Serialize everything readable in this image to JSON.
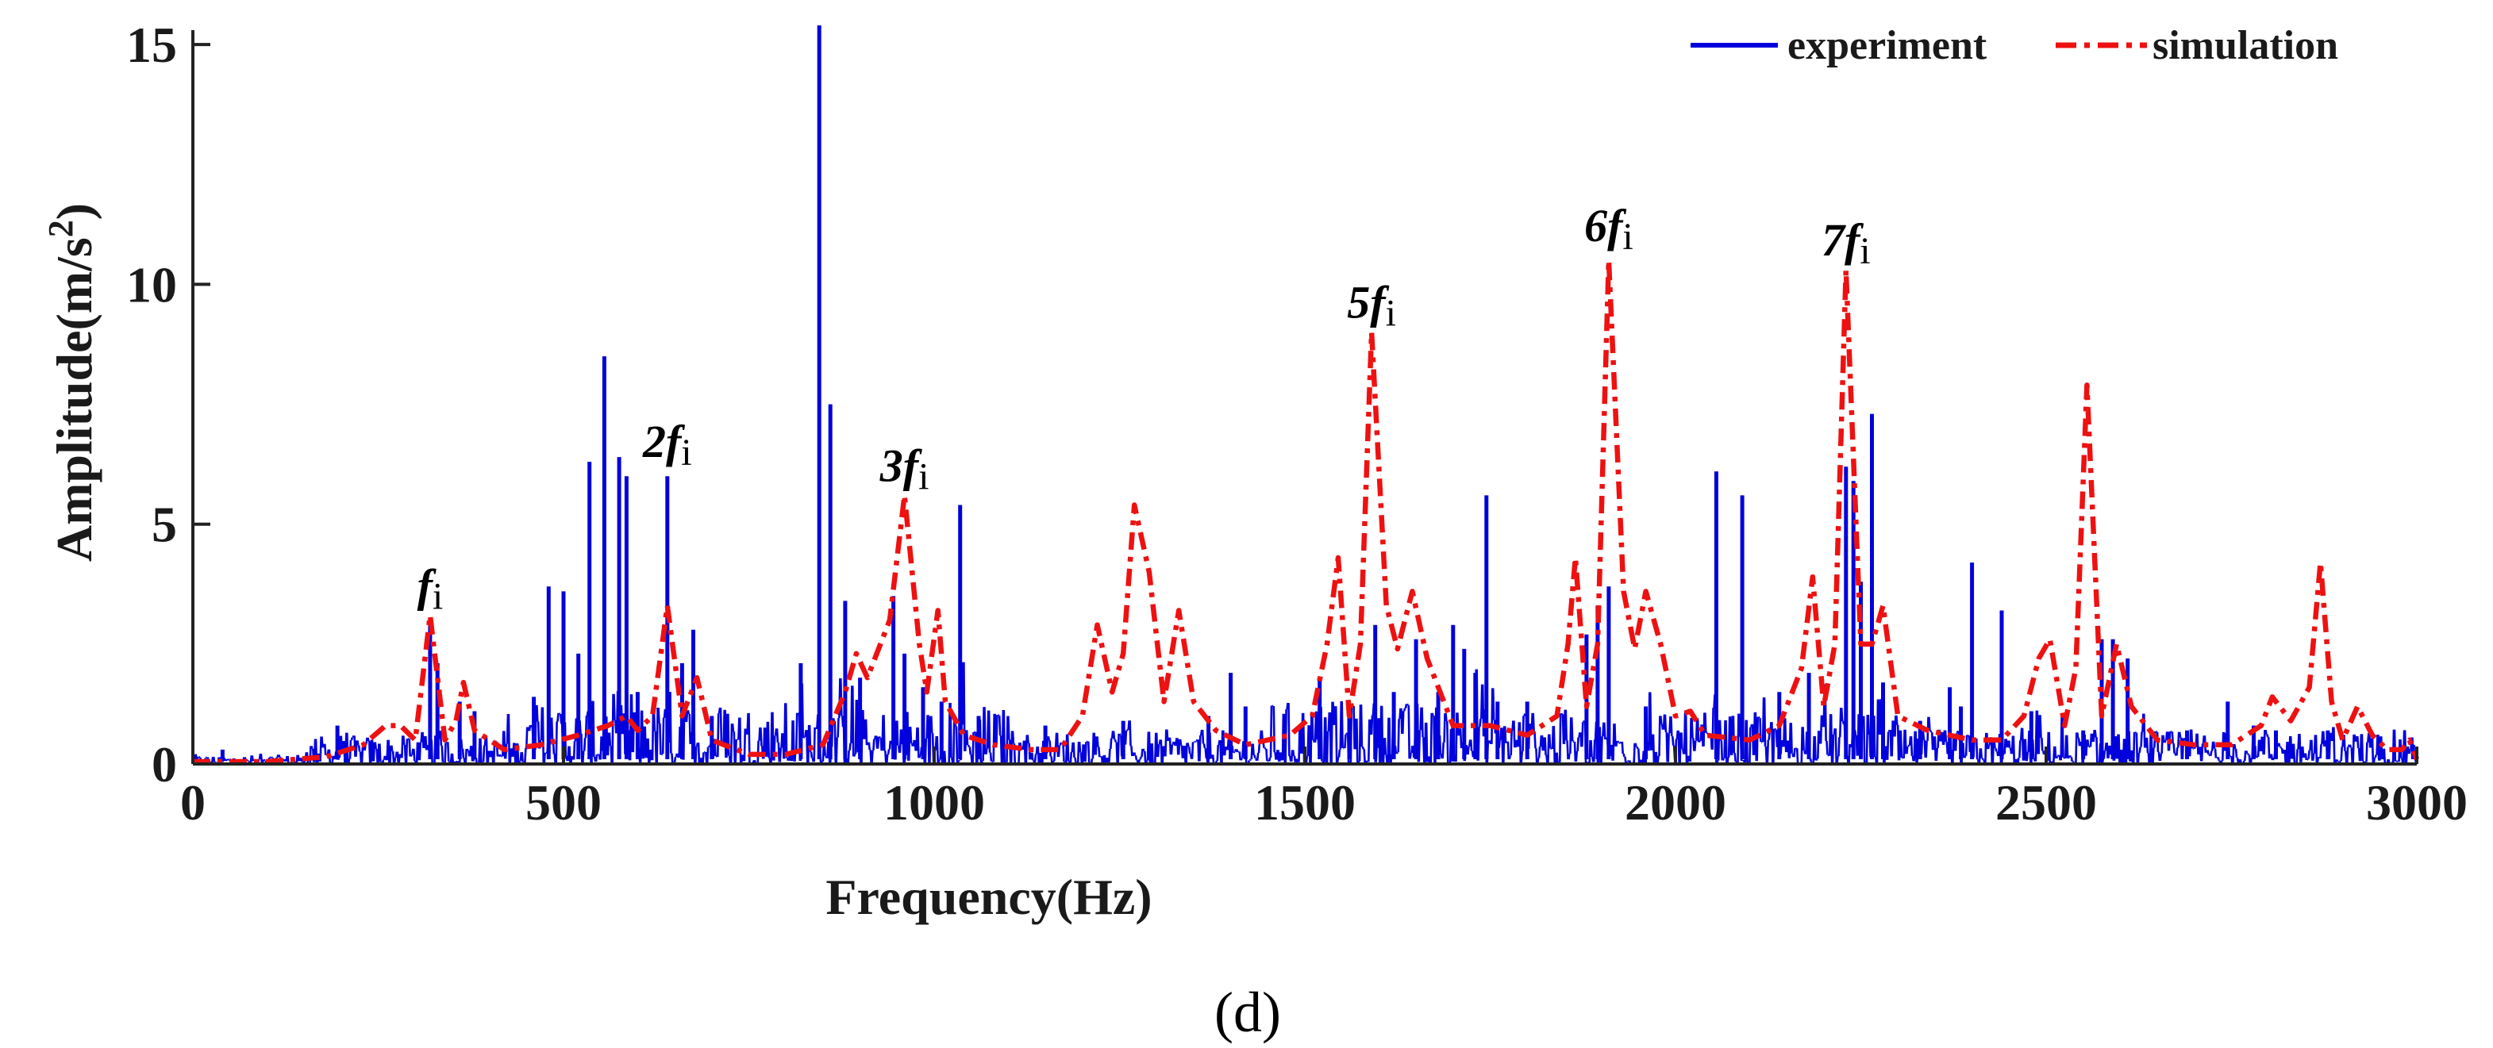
{
  "chart_data": {
    "type": "line",
    "title": "",
    "subfigure_label": "(d)",
    "xlabel": "Frequency(Hz)",
    "ylabel_main": "Amplitude(m/s",
    "ylabel_sup": "2",
    "ylabel_close": ")",
    "xlim": [
      0,
      3000
    ],
    "ylim": [
      0,
      15.3
    ],
    "x_ticks": [
      0,
      500,
      1000,
      1500,
      2000,
      2500,
      3000
    ],
    "x_tick_labels": [
      "0",
      "500",
      "1000",
      "1500",
      "2000",
      "2500",
      "3000"
    ],
    "y_ticks": [
      0,
      5,
      10,
      15
    ],
    "y_tick_labels": [
      "0",
      "5",
      "10",
      "15"
    ],
    "grid": false,
    "legend_position": "top-right",
    "colors": {
      "experiment": "#0000dd",
      "simulation": "#ee1111",
      "axis": "#222222"
    },
    "series": [
      {
        "name": "experiment",
        "style": "solid",
        "baseline_level": 0.25,
        "peaks": [
          [
            40,
            0.3
          ],
          [
            195,
            0.8
          ],
          [
            320,
            2.9
          ],
          [
            330,
            2.1
          ],
          [
            360,
            1.3
          ],
          [
            380,
            1.1
          ],
          [
            460,
            1.4
          ],
          [
            480,
            3.7
          ],
          [
            500,
            3.6
          ],
          [
            520,
            2.3
          ],
          [
            535,
            6.3
          ],
          [
            555,
            8.5
          ],
          [
            575,
            6.4
          ],
          [
            585,
            6.0
          ],
          [
            600,
            1.5
          ],
          [
            640,
            6.0
          ],
          [
            660,
            2.1
          ],
          [
            675,
            2.8
          ],
          [
            700,
            1.0
          ],
          [
            820,
            2.1
          ],
          [
            845,
            15.4
          ],
          [
            860,
            7.5
          ],
          [
            880,
            3.4
          ],
          [
            900,
            1.8
          ],
          [
            945,
            3.5
          ],
          [
            960,
            2.3
          ],
          [
            985,
            1.6
          ],
          [
            1010,
            1.3
          ],
          [
            1035,
            5.4
          ],
          [
            1060,
            1.0
          ],
          [
            1150,
            0.8
          ],
          [
            1255,
            0.9
          ],
          [
            1370,
            1.0
          ],
          [
            1400,
            1.9
          ],
          [
            1420,
            1.2
          ],
          [
            1520,
            1.8
          ],
          [
            1560,
            1.0
          ],
          [
            1595,
            2.9
          ],
          [
            1620,
            1.5
          ],
          [
            1650,
            2.6
          ],
          [
            1680,
            1.5
          ],
          [
            1700,
            2.9
          ],
          [
            1715,
            2.4
          ],
          [
            1730,
            1.9
          ],
          [
            1745,
            5.6
          ],
          [
            1760,
            1.3
          ],
          [
            1800,
            1.3
          ],
          [
            1880,
            2.7
          ],
          [
            1895,
            3.3
          ],
          [
            1910,
            3.7
          ],
          [
            1960,
            1.2
          ],
          [
            2055,
            6.1
          ],
          [
            2090,
            5.6
          ],
          [
            2140,
            1.5
          ],
          [
            2180,
            1.9
          ],
          [
            2230,
            6.2
          ],
          [
            2240,
            5.9
          ],
          [
            2250,
            3.8
          ],
          [
            2265,
            7.3
          ],
          [
            2280,
            1.7
          ],
          [
            2330,
            0.9
          ],
          [
            2370,
            1.6
          ],
          [
            2385,
            1.2
          ],
          [
            2400,
            4.2
          ],
          [
            2440,
            3.2
          ],
          [
            2480,
            1.1
          ],
          [
            2550,
            0.7
          ],
          [
            2575,
            2.6
          ],
          [
            2590,
            2.6
          ],
          [
            2610,
            2.2
          ],
          [
            2690,
            0.7
          ],
          [
            2745,
            1.3
          ],
          [
            2780,
            0.8
          ],
          [
            2810,
            0.7
          ],
          [
            2880,
            0.7
          ],
          [
            2950,
            0.4
          ],
          [
            2995,
            0.4
          ]
        ]
      },
      {
        "name": "simulation",
        "style": "dash-dot",
        "points": [
          [
            0,
            0.05
          ],
          [
            100,
            0.05
          ],
          [
            180,
            0.15
          ],
          [
            230,
            0.4
          ],
          [
            260,
            0.8
          ],
          [
            280,
            0.8
          ],
          [
            300,
            0.5
          ],
          [
            320,
            3.1
          ],
          [
            340,
            0.5
          ],
          [
            355,
            0.9
          ],
          [
            365,
            1.7
          ],
          [
            380,
            0.7
          ],
          [
            420,
            0.3
          ],
          [
            470,
            0.4
          ],
          [
            520,
            0.6
          ],
          [
            560,
            0.8
          ],
          [
            585,
            1.0
          ],
          [
            600,
            0.7
          ],
          [
            620,
            1.0
          ],
          [
            640,
            3.3
          ],
          [
            660,
            1.0
          ],
          [
            680,
            1.8
          ],
          [
            700,
            0.5
          ],
          [
            750,
            0.2
          ],
          [
            800,
            0.2
          ],
          [
            850,
            0.4
          ],
          [
            880,
            1.5
          ],
          [
            895,
            2.3
          ],
          [
            910,
            1.8
          ],
          [
            940,
            3.0
          ],
          [
            960,
            5.6
          ],
          [
            980,
            2.5
          ],
          [
            990,
            1.5
          ],
          [
            1005,
            3.2
          ],
          [
            1015,
            1.3
          ],
          [
            1040,
            0.6
          ],
          [
            1080,
            0.4
          ],
          [
            1130,
            0.3
          ],
          [
            1170,
            0.3
          ],
          [
            1200,
            1.0
          ],
          [
            1220,
            2.9
          ],
          [
            1240,
            1.5
          ],
          [
            1255,
            2.3
          ],
          [
            1270,
            5.4
          ],
          [
            1290,
            4.0
          ],
          [
            1310,
            1.3
          ],
          [
            1330,
            3.2
          ],
          [
            1350,
            1.3
          ],
          [
            1380,
            0.7
          ],
          [
            1420,
            0.4
          ],
          [
            1480,
            0.6
          ],
          [
            1510,
            1.0
          ],
          [
            1530,
            2.5
          ],
          [
            1545,
            4.3
          ],
          [
            1560,
            1.0
          ],
          [
            1575,
            2.5
          ],
          [
            1590,
            9.0
          ],
          [
            1610,
            3.3
          ],
          [
            1625,
            2.4
          ],
          [
            1645,
            3.6
          ],
          [
            1665,
            2.2
          ],
          [
            1700,
            0.8
          ],
          [
            1750,
            0.8
          ],
          [
            1800,
            0.6
          ],
          [
            1840,
            1.0
          ],
          [
            1855,
            2.5
          ],
          [
            1865,
            4.3
          ],
          [
            1880,
            1.2
          ],
          [
            1895,
            2.5
          ],
          [
            1910,
            10.5
          ],
          [
            1930,
            3.6
          ],
          [
            1945,
            2.4
          ],
          [
            1960,
            3.6
          ],
          [
            1980,
            2.5
          ],
          [
            2000,
            1.0
          ],
          [
            2020,
            1.1
          ],
          [
            2040,
            0.6
          ],
          [
            2100,
            0.5
          ],
          [
            2140,
            0.8
          ],
          [
            2170,
            2.0
          ],
          [
            2185,
            3.9
          ],
          [
            2200,
            1.2
          ],
          [
            2215,
            2.5
          ],
          [
            2230,
            10.3
          ],
          [
            2250,
            2.5
          ],
          [
            2265,
            2.5
          ],
          [
            2280,
            3.3
          ],
          [
            2300,
            1.0
          ],
          [
            2340,
            0.7
          ],
          [
            2400,
            0.5
          ],
          [
            2440,
            0.5
          ],
          [
            2470,
            1.0
          ],
          [
            2490,
            2.2
          ],
          [
            2505,
            2.6
          ],
          [
            2525,
            0.8
          ],
          [
            2540,
            2.0
          ],
          [
            2555,
            7.9
          ],
          [
            2575,
            1.0
          ],
          [
            2595,
            2.5
          ],
          [
            2615,
            1.2
          ],
          [
            2650,
            0.5
          ],
          [
            2700,
            0.4
          ],
          [
            2750,
            0.4
          ],
          [
            2790,
            0.8
          ],
          [
            2805,
            1.4
          ],
          [
            2830,
            0.9
          ],
          [
            2855,
            1.6
          ],
          [
            2870,
            4.2
          ],
          [
            2885,
            1.3
          ],
          [
            2900,
            0.5
          ],
          [
            2920,
            1.2
          ],
          [
            2940,
            0.6
          ],
          [
            2960,
            0.3
          ],
          [
            2980,
            0.3
          ],
          [
            2990,
            0.5
          ],
          [
            3000,
            0.1
          ]
        ]
      }
    ],
    "annotations": [
      {
        "main": "f",
        "sub": "i",
        "x": 320,
        "y": 3.4
      },
      {
        "main": "2f",
        "sub": "i",
        "x": 640,
        "y": 6.4
      },
      {
        "main": "3f",
        "sub": "i",
        "x": 960,
        "y": 5.9
      },
      {
        "main": "5f",
        "sub": "i",
        "x": 1590,
        "y": 9.3
      },
      {
        "main": "6f",
        "sub": "i",
        "x": 1910,
        "y": 10.9
      },
      {
        "main": "7f",
        "sub": "i",
        "x": 2230,
        "y": 10.6
      }
    ]
  }
}
